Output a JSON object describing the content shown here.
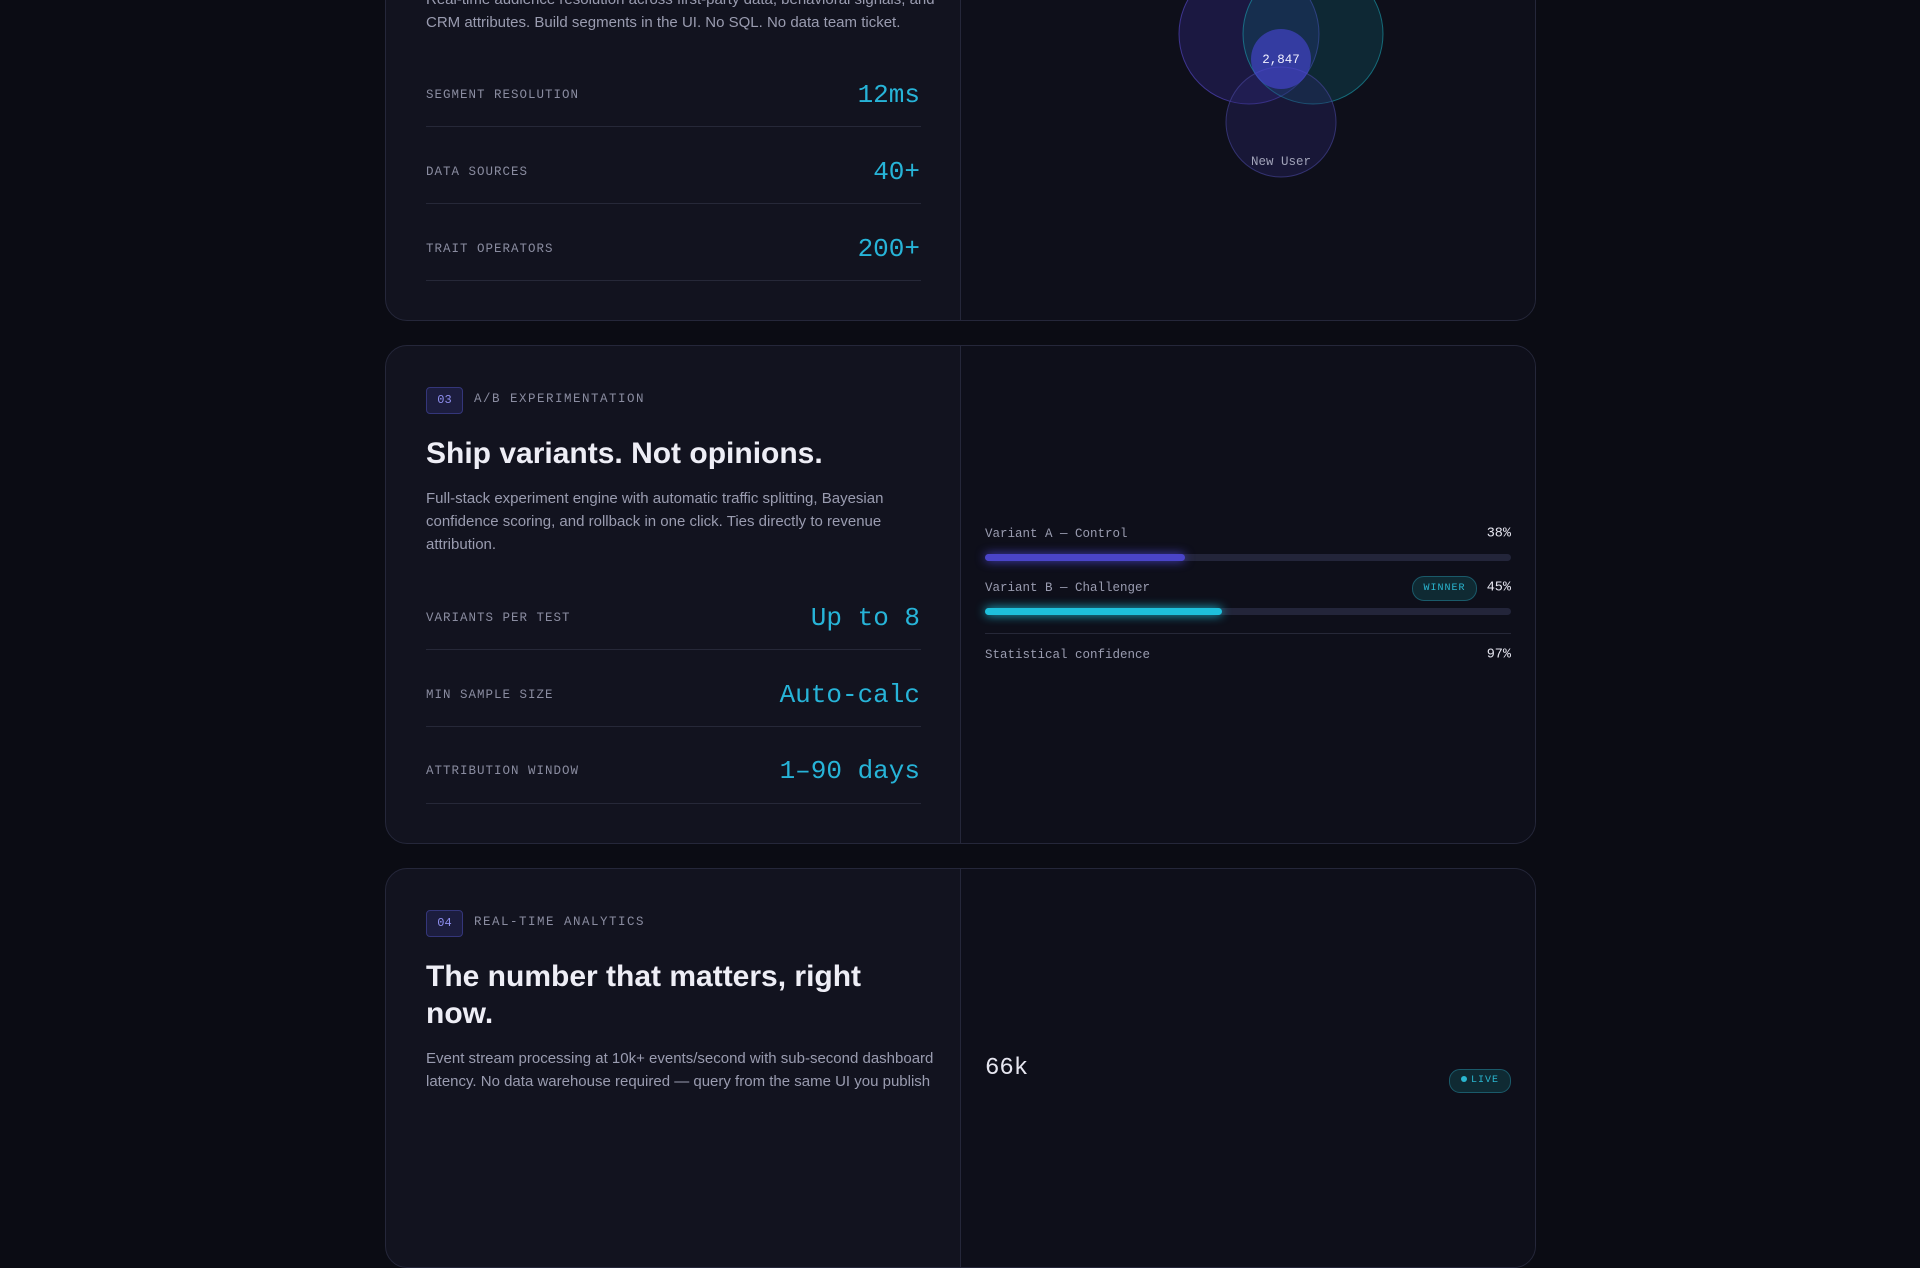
{
  "cards": [
    {
      "description": [
        "Real-time audience resolution across first-party data, behavioral signals, and",
        "CRM attributes. Build segments in the UI. No SQL. No data team ticket."
      ],
      "stats": [
        {
          "label": "SEGMENT RESOLUTION",
          "value": "12ms"
        },
        {
          "label": "DATA SOURCES",
          "value": "40+"
        },
        {
          "label": "TRAIT OPERATORS",
          "value": "200+"
        }
      ],
      "venn": {
        "count": "2,847",
        "label": "New User"
      }
    },
    {
      "number": "03",
      "eyebrow": "A/B EXPERIMENTATION",
      "title": "Ship variants. Not opinions.",
      "description": [
        "Full-stack experiment engine with automatic traffic splitting, Bayesian",
        "confidence scoring, and rollback in one click. Ties directly to revenue",
        "attribution."
      ],
      "stats": [
        {
          "label": "VARIANTS PER TEST",
          "value": "Up to 8"
        },
        {
          "label": "MIN SAMPLE SIZE",
          "value": "Auto-calc"
        },
        {
          "label": "ATTRIBUTION WINDOW",
          "value": "1–90 days"
        }
      ],
      "experiment": {
        "xlim": [
          0,
          100
        ],
        "variants": [
          {
            "name": "Variant A — Control",
            "value": 38,
            "value_label": "38%"
          },
          {
            "name": "Variant B — Challenger",
            "value": 45,
            "value_label": "45%",
            "badge": "WINNER"
          }
        ],
        "confidence": {
          "label": "Statistical confidence",
          "value": 97,
          "value_label": "97%"
        }
      }
    },
    {
      "number": "04",
      "eyebrow": "REAL-TIME ANALYTICS",
      "title": [
        "The number that matters, right",
        "now."
      ],
      "description": [
        "Event stream processing at 10k+ events/second with sub-second dashboard",
        "latency. No data warehouse required — query from the same UI you publish"
      ],
      "metric": "66k",
      "badge": "LIVE"
    }
  ]
}
